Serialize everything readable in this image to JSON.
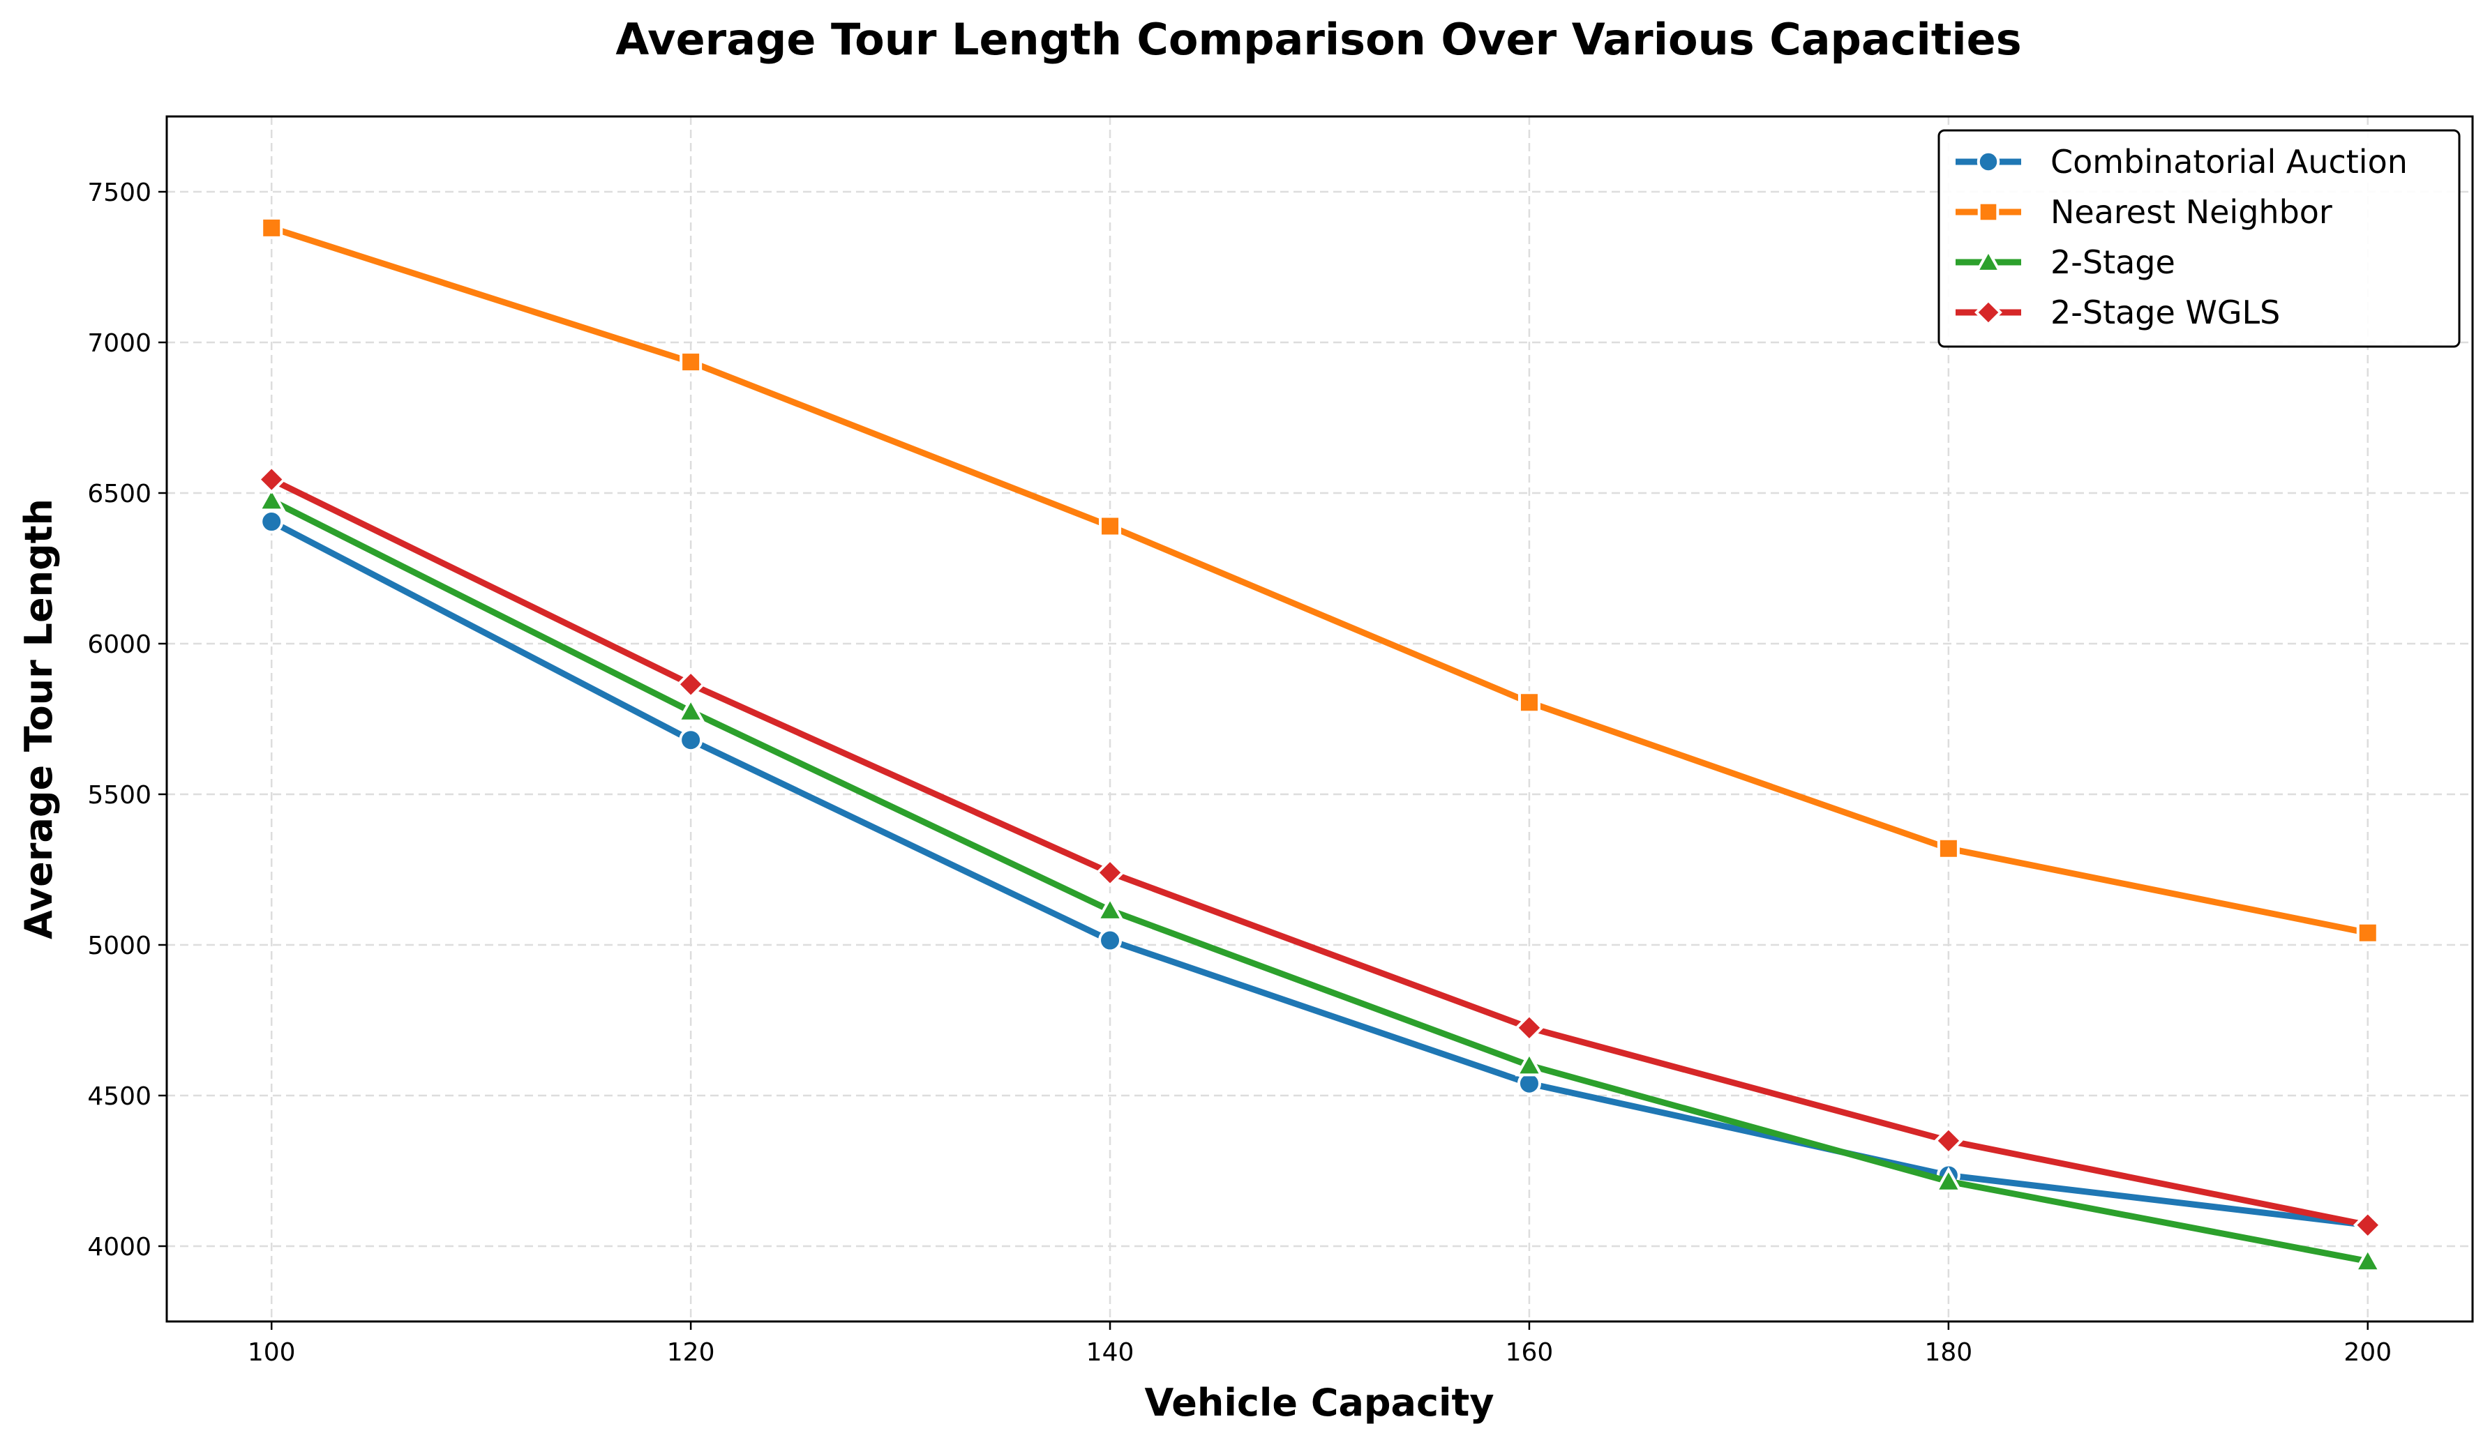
{
  "chart_data": {
    "type": "line",
    "title": "Average Tour Length Comparison Over Various Capacities",
    "xlabel": "Vehicle Capacity",
    "ylabel": "Average Tour Length",
    "x": [
      100,
      120,
      140,
      160,
      180,
      200
    ],
    "xlim": [
      95,
      205
    ],
    "ylim": [
      3750,
      7750
    ],
    "xticks": [
      "100",
      "120",
      "140",
      "160",
      "180",
      "200"
    ],
    "yticks": [
      "4000",
      "4500",
      "5000",
      "5500",
      "6000",
      "6500",
      "7000",
      "7500"
    ],
    "grid": true,
    "grid_style": "dashed",
    "legend_position": "top-right",
    "series": [
      {
        "name": "Combinatorial Auction",
        "color": "#1f77b4",
        "marker": "circle",
        "values": [
          6405,
          5680,
          5015,
          4540,
          4235,
          4070
        ]
      },
      {
        "name": "Nearest Neighbor",
        "color": "#ff7f0e",
        "marker": "square",
        "values": [
          7380,
          6935,
          6390,
          5805,
          5320,
          5040
        ]
      },
      {
        "name": "2-Stage",
        "color": "#2ca02c",
        "marker": "triangle",
        "values": [
          6475,
          5775,
          5115,
          4600,
          4215,
          3950
        ]
      },
      {
        "name": "2-Stage WGLS",
        "color": "#d62728",
        "marker": "diamond",
        "values": [
          6545,
          5865,
          5240,
          4725,
          4350,
          4070
        ]
      }
    ]
  }
}
